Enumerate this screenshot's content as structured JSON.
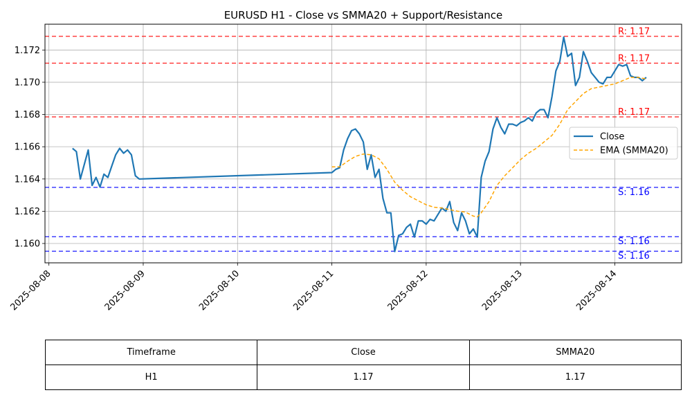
{
  "chart_data": {
    "type": "line",
    "title": "EURUSD H1 - Close vs SMMA20 + Support/Resistance",
    "xlabel": "",
    "ylabel": "",
    "xlim": [
      "2025-08-07 23:00",
      "2025-08-14 17:00"
    ],
    "ylim": [
      1.1588,
      1.1736
    ],
    "x_ticks": [
      "2025-08-08",
      "2025-08-09",
      "2025-08-10",
      "2025-08-11",
      "2025-08-12",
      "2025-08-13",
      "2025-08-14"
    ],
    "y_ticks": [
      "1.160",
      "1.162",
      "1.164",
      "1.166",
      "1.168",
      "1.170",
      "1.172"
    ],
    "grid": true,
    "legend_position": "center-right",
    "series": [
      {
        "name": "Close",
        "style": "solid",
        "color": "#1f77b4",
        "points": [
          [
            "2025-08-08 06:00",
            1.1659
          ],
          [
            "2025-08-08 07:00",
            1.1657
          ],
          [
            "2025-08-08 08:00",
            1.164
          ],
          [
            "2025-08-08 09:00",
            1.1649
          ],
          [
            "2025-08-08 10:00",
            1.1658
          ],
          [
            "2025-08-08 11:00",
            1.1636
          ],
          [
            "2025-08-08 12:00",
            1.1641
          ],
          [
            "2025-08-08 13:00",
            1.1635
          ],
          [
            "2025-08-08 14:00",
            1.1643
          ],
          [
            "2025-08-08 15:00",
            1.1641
          ],
          [
            "2025-08-08 16:00",
            1.1648
          ],
          [
            "2025-08-08 17:00",
            1.1655
          ],
          [
            "2025-08-08 18:00",
            1.1659
          ],
          [
            "2025-08-08 19:00",
            1.1656
          ],
          [
            "2025-08-08 20:00",
            1.1658
          ],
          [
            "2025-08-08 21:00",
            1.1655
          ],
          [
            "2025-08-08 22:00",
            1.1642
          ],
          [
            "2025-08-08 23:00",
            1.164
          ],
          [
            "2025-08-11 00:00",
            1.1644
          ],
          [
            "2025-08-11 01:00",
            1.1646
          ],
          [
            "2025-08-11 02:00",
            1.1647
          ],
          [
            "2025-08-11 03:00",
            1.1658
          ],
          [
            "2025-08-11 04:00",
            1.1665
          ],
          [
            "2025-08-11 05:00",
            1.167
          ],
          [
            "2025-08-11 06:00",
            1.1671
          ],
          [
            "2025-08-11 07:00",
            1.1668
          ],
          [
            "2025-08-11 08:00",
            1.1663
          ],
          [
            "2025-08-11 09:00",
            1.1646
          ],
          [
            "2025-08-11 10:00",
            1.1655
          ],
          [
            "2025-08-11 11:00",
            1.1641
          ],
          [
            "2025-08-11 12:00",
            1.1646
          ],
          [
            "2025-08-11 13:00",
            1.1628
          ],
          [
            "2025-08-11 14:00",
            1.1619
          ],
          [
            "2025-08-11 15:00",
            1.1619
          ],
          [
            "2025-08-11 16:00",
            1.1595
          ],
          [
            "2025-08-11 17:00",
            1.1605
          ],
          [
            "2025-08-11 18:00",
            1.1606
          ],
          [
            "2025-08-11 19:00",
            1.161
          ],
          [
            "2025-08-11 20:00",
            1.1612
          ],
          [
            "2025-08-11 21:00",
            1.1604
          ],
          [
            "2025-08-11 22:00",
            1.1614
          ],
          [
            "2025-08-11 23:00",
            1.1614
          ],
          [
            "2025-08-12 00:00",
            1.1612
          ],
          [
            "2025-08-12 01:00",
            1.1615
          ],
          [
            "2025-08-12 02:00",
            1.1614
          ],
          [
            "2025-08-12 03:00",
            1.1618
          ],
          [
            "2025-08-12 04:00",
            1.1622
          ],
          [
            "2025-08-12 05:00",
            1.162
          ],
          [
            "2025-08-12 06:00",
            1.1626
          ],
          [
            "2025-08-12 07:00",
            1.1613
          ],
          [
            "2025-08-12 08:00",
            1.1608
          ],
          [
            "2025-08-12 09:00",
            1.1619
          ],
          [
            "2025-08-12 10:00",
            1.1614
          ],
          [
            "2025-08-12 11:00",
            1.1606
          ],
          [
            "2025-08-12 12:00",
            1.1609
          ],
          [
            "2025-08-12 13:00",
            1.1604
          ],
          [
            "2025-08-12 14:00",
            1.1641
          ],
          [
            "2025-08-12 15:00",
            1.1651
          ],
          [
            "2025-08-12 16:00",
            1.1657
          ],
          [
            "2025-08-12 17:00",
            1.1671
          ],
          [
            "2025-08-12 18:00",
            1.1678
          ],
          [
            "2025-08-12 19:00",
            1.1672
          ],
          [
            "2025-08-12 20:00",
            1.1668
          ],
          [
            "2025-08-12 21:00",
            1.1674
          ],
          [
            "2025-08-12 22:00",
            1.1674
          ],
          [
            "2025-08-12 23:00",
            1.1673
          ],
          [
            "2025-08-13 00:00",
            1.1675
          ],
          [
            "2025-08-13 01:00",
            1.1676
          ],
          [
            "2025-08-13 02:00",
            1.1678
          ],
          [
            "2025-08-13 03:00",
            1.1676
          ],
          [
            "2025-08-13 04:00",
            1.1681
          ],
          [
            "2025-08-13 05:00",
            1.1683
          ],
          [
            "2025-08-13 06:00",
            1.1683
          ],
          [
            "2025-08-13 07:00",
            1.1678
          ],
          [
            "2025-08-13 08:00",
            1.1691
          ],
          [
            "2025-08-13 09:00",
            1.1707
          ],
          [
            "2025-08-13 10:00",
            1.1713
          ],
          [
            "2025-08-13 11:00",
            1.1728
          ],
          [
            "2025-08-13 12:00",
            1.1716
          ],
          [
            "2025-08-13 13:00",
            1.1718
          ],
          [
            "2025-08-13 14:00",
            1.1698
          ],
          [
            "2025-08-13 15:00",
            1.1703
          ],
          [
            "2025-08-13 16:00",
            1.1719
          ],
          [
            "2025-08-13 17:00",
            1.1713
          ],
          [
            "2025-08-13 18:00",
            1.1706
          ],
          [
            "2025-08-13 19:00",
            1.1703
          ],
          [
            "2025-08-13 20:00",
            1.17
          ],
          [
            "2025-08-13 21:00",
            1.1699
          ],
          [
            "2025-08-13 22:00",
            1.1703
          ],
          [
            "2025-08-13 23:00",
            1.1703
          ],
          [
            "2025-08-14 00:00",
            1.1707
          ],
          [
            "2025-08-14 01:00",
            1.1711
          ],
          [
            "2025-08-14 02:00",
            1.171
          ],
          [
            "2025-08-14 03:00",
            1.1711
          ],
          [
            "2025-08-14 04:00",
            1.1704
          ],
          [
            "2025-08-14 05:00",
            1.1703
          ],
          [
            "2025-08-14 06:00",
            1.1703
          ],
          [
            "2025-08-14 07:00",
            1.1701
          ],
          [
            "2025-08-14 08:00",
            1.1703
          ]
        ]
      },
      {
        "name": "EMA (SMMA20)",
        "style": "dashed",
        "color": "#ffa500",
        "points": [
          [
            "2025-08-11 00:00",
            1.16475
          ],
          [
            "2025-08-11 02:00",
            1.16475
          ],
          [
            "2025-08-11 04:00",
            1.1651
          ],
          [
            "2025-08-11 06:00",
            1.1654
          ],
          [
            "2025-08-11 08:00",
            1.16555
          ],
          [
            "2025-08-11 10:00",
            1.1655
          ],
          [
            "2025-08-11 12:00",
            1.16525
          ],
          [
            "2025-08-11 14:00",
            1.1646
          ],
          [
            "2025-08-11 16:00",
            1.1638
          ],
          [
            "2025-08-11 18:00",
            1.1633
          ],
          [
            "2025-08-11 20:00",
            1.1629
          ],
          [
            "2025-08-11 22:00",
            1.16265
          ],
          [
            "2025-08-12 00:00",
            1.1624
          ],
          [
            "2025-08-12 02:00",
            1.16225
          ],
          [
            "2025-08-12 04:00",
            1.1622
          ],
          [
            "2025-08-12 06:00",
            1.1621
          ],
          [
            "2025-08-12 08:00",
            1.162
          ],
          [
            "2025-08-12 10:00",
            1.16195
          ],
          [
            "2025-08-12 12:00",
            1.1617
          ],
          [
            "2025-08-12 13:00",
            1.16165
          ],
          [
            "2025-08-12 14:00",
            1.1619
          ],
          [
            "2025-08-12 16:00",
            1.1626
          ],
          [
            "2025-08-12 18:00",
            1.1636
          ],
          [
            "2025-08-12 20:00",
            1.1642
          ],
          [
            "2025-08-12 22:00",
            1.1647
          ],
          [
            "2025-08-13 00:00",
            1.1652
          ],
          [
            "2025-08-13 02:00",
            1.1656
          ],
          [
            "2025-08-13 04:00",
            1.1659
          ],
          [
            "2025-08-13 06:00",
            1.1663
          ],
          [
            "2025-08-13 08:00",
            1.1667
          ],
          [
            "2025-08-13 10:00",
            1.1674
          ],
          [
            "2025-08-13 12:00",
            1.1683
          ],
          [
            "2025-08-13 14:00",
            1.1688
          ],
          [
            "2025-08-13 16:00",
            1.1693
          ],
          [
            "2025-08-13 18:00",
            1.1696
          ],
          [
            "2025-08-13 20:00",
            1.1697
          ],
          [
            "2025-08-13 22:00",
            1.1698
          ],
          [
            "2025-08-14 00:00",
            1.1699
          ],
          [
            "2025-08-14 02:00",
            1.1701
          ],
          [
            "2025-08-14 04:00",
            1.1703
          ],
          [
            "2025-08-14 06:00",
            1.1703
          ],
          [
            "2025-08-14 08:00",
            1.1702
          ]
        ]
      }
    ],
    "levels": [
      {
        "kind": "resistance",
        "value": 1.17285,
        "label": "R: 1.17",
        "color": "#ff0000"
      },
      {
        "kind": "resistance",
        "value": 1.17118,
        "label": "R: 1.17",
        "color": "#ff0000"
      },
      {
        "kind": "resistance",
        "value": 1.16785,
        "label": "R: 1.17",
        "color": "#ff0000"
      },
      {
        "kind": "support",
        "value": 1.16348,
        "label": "S: 1.16",
        "color": "#0000ff"
      },
      {
        "kind": "support",
        "value": 1.16042,
        "label": "S: 1.16",
        "color": "#0000ff"
      },
      {
        "kind": "support",
        "value": 1.15952,
        "label": "S: 1.16",
        "color": "#0000ff"
      }
    ]
  },
  "table": {
    "headers": [
      "Timeframe",
      "Close",
      "SMMA20"
    ],
    "rows": [
      [
        "H1",
        "1.17",
        "1.17"
      ]
    ]
  }
}
